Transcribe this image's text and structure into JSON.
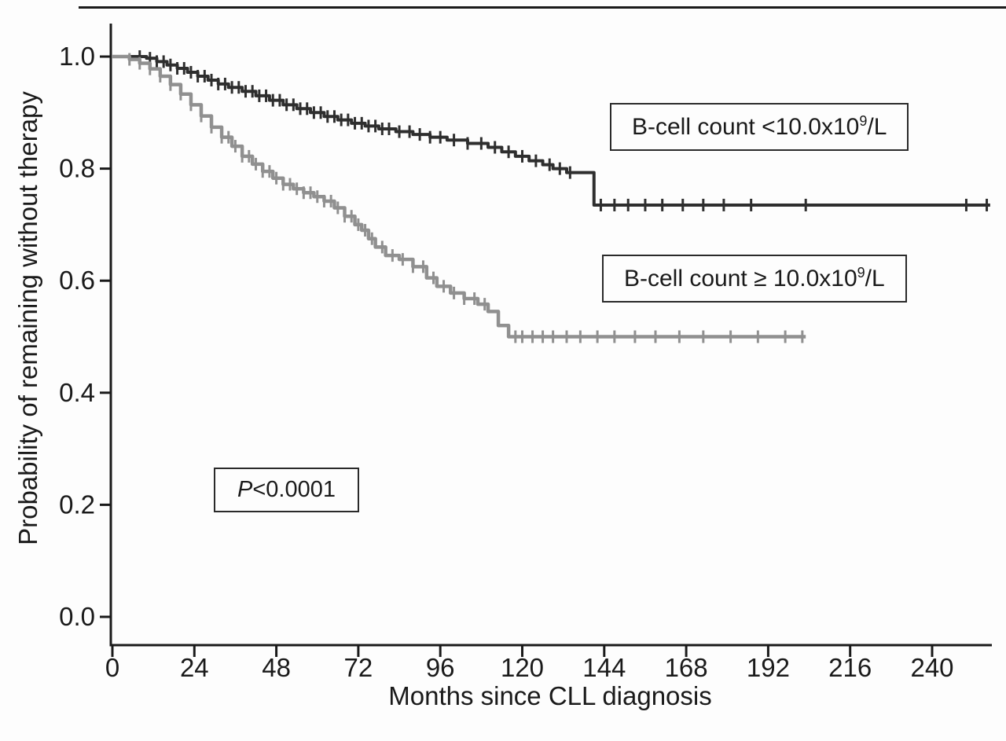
{
  "figure": {
    "ylabel": "Probability of remaining without therapy",
    "xlabel": "Months since CLL diagnosis",
    "pvalue": {
      "italic": "P",
      "rest": "<0.0001"
    },
    "legend_low": {
      "prefix": "B-cell count <10.0x10",
      "sup": "9",
      "suffix": "/L"
    },
    "legend_high": {
      "prefix": "B-cell count ≥ 10.0x10",
      "sup": "9",
      "suffix": "/L"
    }
  },
  "chart_data": {
    "type": "line",
    "subtype": "kaplan-meier-step",
    "title": "",
    "xlabel": "Months since CLL diagnosis",
    "ylabel": "Probability of remaining without therapy",
    "xlim": [
      0,
      240
    ],
    "ylim": [
      0.0,
      1.0
    ],
    "xticks": [
      0,
      24,
      48,
      72,
      96,
      120,
      144,
      168,
      192,
      216,
      240
    ],
    "ytick_labels": [
      "0.0",
      "0.2",
      "0.4",
      "0.6",
      "0.8",
      "1.0"
    ],
    "grid": false,
    "legend_position": "inside-right-boxed",
    "annotations": [
      "P<0.0001"
    ],
    "axis_color": "#1a1a1a",
    "series": [
      {
        "name": "B-cell count <10.0x10⁹/L",
        "color": "#2e2e2e",
        "line_width": 4,
        "points": [
          [
            0,
            1.0
          ],
          [
            10,
            0.997
          ],
          [
            13,
            0.991
          ],
          [
            16,
            0.985
          ],
          [
            19,
            0.979
          ],
          [
            22,
            0.972
          ],
          [
            25,
            0.965
          ],
          [
            28,
            0.958
          ],
          [
            31,
            0.951
          ],
          [
            34,
            0.945
          ],
          [
            38,
            0.938
          ],
          [
            42,
            0.93
          ],
          [
            46,
            0.922
          ],
          [
            50,
            0.914
          ],
          [
            54,
            0.907
          ],
          [
            58,
            0.9
          ],
          [
            62,
            0.893
          ],
          [
            66,
            0.887
          ],
          [
            70,
            0.881
          ],
          [
            74,
            0.876
          ],
          [
            78,
            0.871
          ],
          [
            83,
            0.866
          ],
          [
            88,
            0.861
          ],
          [
            93,
            0.856
          ],
          [
            98,
            0.851
          ],
          [
            104,
            0.845
          ],
          [
            110,
            0.838
          ],
          [
            114,
            0.83
          ],
          [
            118,
            0.822
          ],
          [
            122,
            0.814
          ],
          [
            126,
            0.807
          ],
          [
            129,
            0.8
          ],
          [
            133,
            0.793
          ],
          [
            141,
            0.735
          ],
          [
            257,
            0.735
          ]
        ],
        "censor_months": [
          8,
          11,
          13,
          15,
          17,
          19,
          21,
          23,
          25,
          27,
          29,
          31,
          33,
          35,
          37,
          39,
          41,
          43,
          45,
          47,
          49,
          51,
          53,
          55,
          57,
          59,
          61,
          63,
          65,
          67,
          69,
          71,
          73,
          75,
          77,
          79,
          81,
          84,
          87,
          90,
          93,
          96,
          100,
          104,
          108,
          112,
          116,
          120,
          124,
          128,
          131,
          134,
          143,
          147,
          151,
          156,
          161,
          167,
          173,
          179,
          187,
          203,
          250,
          256
        ]
      },
      {
        "name": "B-cell count ≥10.0x10⁹/L",
        "color": "#909090",
        "line_width": 4.5,
        "points": [
          [
            0,
            1.0
          ],
          [
            5,
            0.995
          ],
          [
            8,
            0.988
          ],
          [
            11,
            0.978
          ],
          [
            14,
            0.965
          ],
          [
            17,
            0.95
          ],
          [
            20,
            0.933
          ],
          [
            23,
            0.914
          ],
          [
            26,
            0.894
          ],
          [
            29,
            0.874
          ],
          [
            32,
            0.856
          ],
          [
            35,
            0.84
          ],
          [
            38,
            0.822
          ],
          [
            41,
            0.808
          ],
          [
            44,
            0.795
          ],
          [
            47,
            0.783
          ],
          [
            50,
            0.772
          ],
          [
            53,
            0.764
          ],
          [
            56,
            0.757
          ],
          [
            59,
            0.75
          ],
          [
            62,
            0.742
          ],
          [
            65,
            0.73
          ],
          [
            68,
            0.715
          ],
          [
            71,
            0.7
          ],
          [
            73,
            0.69
          ],
          [
            75,
            0.675
          ],
          [
            77,
            0.66
          ],
          [
            80,
            0.645
          ],
          [
            84,
            0.638
          ],
          [
            88,
            0.625
          ],
          [
            92,
            0.605
          ],
          [
            95,
            0.59
          ],
          [
            99,
            0.578
          ],
          [
            103,
            0.568
          ],
          [
            107,
            0.558
          ],
          [
            110,
            0.545
          ],
          [
            113,
            0.52
          ],
          [
            116,
            0.5
          ],
          [
            203,
            0.5
          ]
        ],
        "censor_months": [
          5,
          8,
          11,
          14,
          17,
          20,
          23,
          26,
          29,
          32,
          34,
          36,
          38,
          40,
          42,
          44,
          46,
          48,
          50,
          52,
          54,
          56,
          58,
          60,
          62,
          64,
          66,
          68,
          70,
          72,
          74,
          76,
          79,
          82,
          85,
          88,
          91,
          94,
          97,
          100,
          103,
          106,
          109,
          118,
          120,
          123,
          126,
          129,
          133,
          137,
          142,
          147,
          153,
          159,
          166,
          173,
          181,
          189,
          197,
          202
        ]
      }
    ]
  }
}
